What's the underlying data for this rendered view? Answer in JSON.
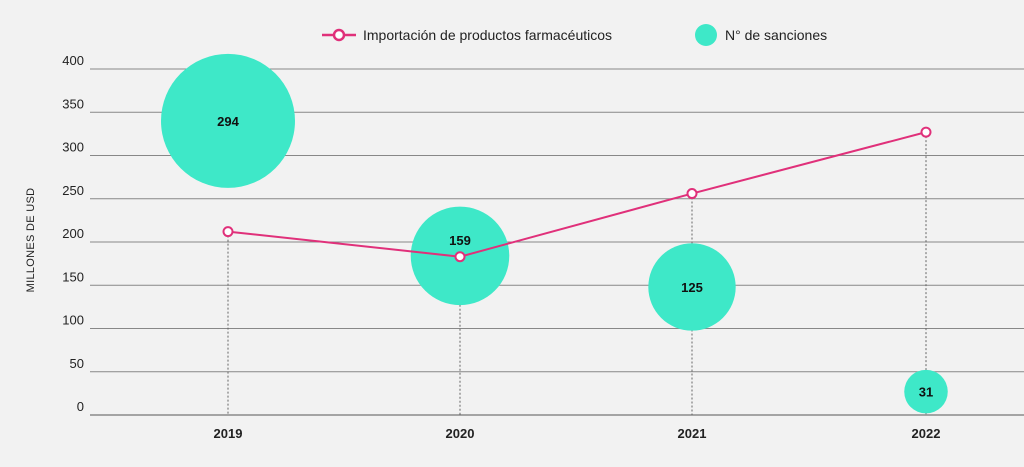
{
  "chart_data": {
    "type": "line",
    "categories": [
      "2019",
      "2020",
      "2021",
      "2022"
    ],
    "ylabel": "MILLONES DE USD",
    "ylim": [
      0,
      400
    ],
    "yticks": [
      0,
      50,
      100,
      150,
      200,
      250,
      300,
      350,
      400
    ],
    "grid": true,
    "legend_position": "top",
    "series": [
      {
        "name": "Importación de productos farmacéuticos",
        "type": "line",
        "color": "#e0307a",
        "values": [
          212,
          183,
          256,
          327
        ]
      },
      {
        "name": "N° de sanciones",
        "type": "bubble",
        "color": "#3ee8c8",
        "values": [
          294,
          159,
          125,
          31
        ],
        "y_position": [
          340,
          184,
          148,
          27
        ]
      }
    ]
  }
}
